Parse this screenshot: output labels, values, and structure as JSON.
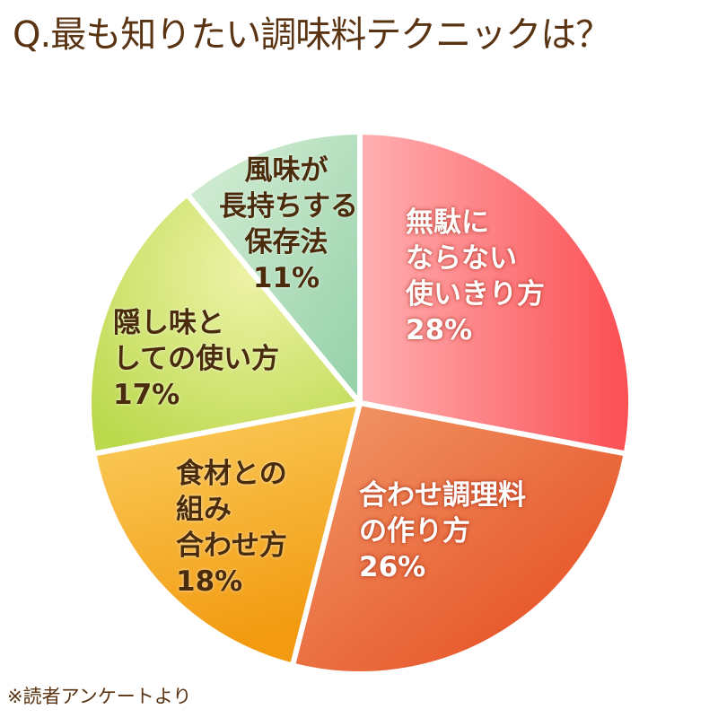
{
  "title": "Q.最も知りたい調味料テクニックは？",
  "footnote": "※読者アンケートより",
  "chart_data": {
    "type": "pie",
    "title": "Q.最も知りたい調味料テクニックは？",
    "start_angle": "12 o'clock, clockwise",
    "categories": [
      "無駄にならない使いきり方",
      "合わせ調理料の作り方",
      "食材との組み合わせ方",
      "隠し味としての使い方",
      "風味が長持ちする保存法"
    ],
    "values": [
      28,
      26,
      18,
      17,
      11
    ],
    "unit": "%",
    "colors": [
      "#fb6f72",
      "#ec6a35",
      "#f4b12c",
      "#cde06a",
      "#a8dbb6"
    ],
    "source_note": "※読者アンケートより"
  },
  "labels": [
    {
      "lines": [
        "無駄に",
        "ならない",
        "使いきり方"
      ],
      "pct": "28%"
    },
    {
      "lines": [
        "合わせ調理料",
        "の作り方"
      ],
      "pct": "26%"
    },
    {
      "lines": [
        "食材との",
        "組み",
        "合わせ方"
      ],
      "pct": "18%"
    },
    {
      "lines": [
        "隠し味と",
        "しての使い方"
      ],
      "pct": "17%"
    },
    {
      "lines": [
        "風味が",
        "長持ちする",
        "保存法"
      ],
      "pct": "11%"
    }
  ]
}
